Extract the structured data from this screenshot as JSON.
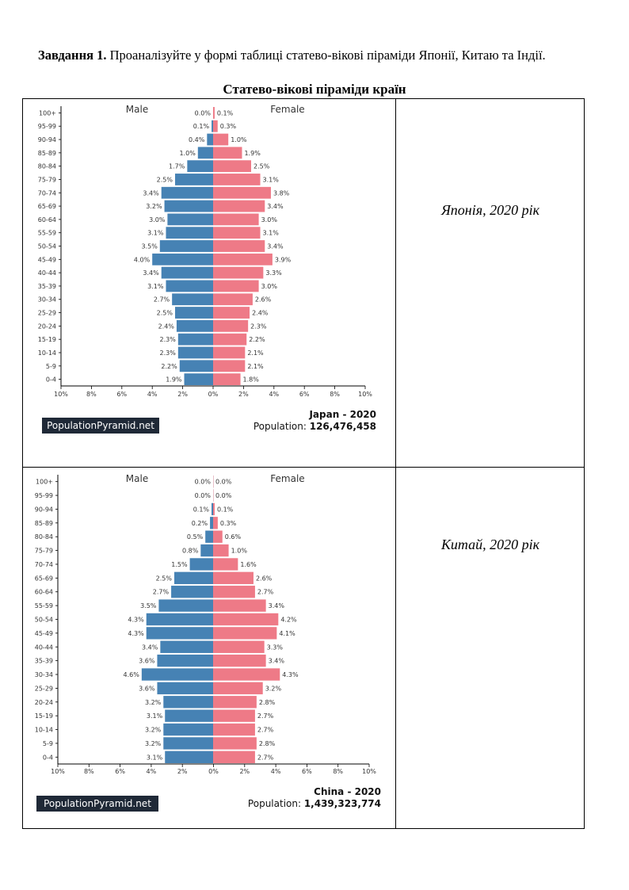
{
  "task": {
    "label": "Завдання 1.",
    "text": " Проаналізуйте у формі таблиці статево-вікові піраміди Японії, Китаю та Індії."
  },
  "table_title": "Статево-вікові піраміди країн",
  "rows": [
    {
      "caption": "Японія, 2020 рік"
    },
    {
      "caption": "Китай, 2020 рік"
    }
  ],
  "colors": {
    "male": "#4682b4",
    "female": "#ee7a87"
  },
  "chart_data": [
    {
      "type": "bar",
      "title": "Japan - 2020",
      "population_label": "Population:",
      "population": "126,476,458",
      "watermark": "PopulationPyramid.net",
      "legend": [
        "Male",
        "Female"
      ],
      "categories": [
        "100+",
        "95-99",
        "90-94",
        "85-89",
        "80-84",
        "75-79",
        "70-74",
        "65-69",
        "60-64",
        "55-59",
        "50-54",
        "45-49",
        "40-44",
        "35-39",
        "30-34",
        "25-29",
        "20-24",
        "15-19",
        "10-14",
        "5-9",
        "0-4"
      ],
      "series": [
        {
          "name": "Male",
          "values": [
            0.0,
            0.1,
            0.4,
            1.0,
            1.7,
            2.5,
            3.4,
            3.2,
            3.0,
            3.1,
            3.5,
            4.0,
            3.4,
            3.1,
            2.7,
            2.5,
            2.4,
            2.3,
            2.3,
            2.2,
            1.9
          ]
        },
        {
          "name": "Female",
          "values": [
            0.1,
            0.3,
            1.0,
            1.9,
            2.5,
            3.1,
            3.8,
            3.4,
            3.0,
            3.1,
            3.4,
            3.9,
            3.3,
            3.0,
            2.6,
            2.4,
            2.3,
            2.2,
            2.1,
            2.1,
            1.8
          ]
        }
      ],
      "xticks": [
        "10%",
        "8%",
        "6%",
        "4%",
        "2%",
        "0%",
        "2%",
        "4%",
        "6%",
        "8%",
        "10%"
      ],
      "xlim": [
        -10,
        10
      ]
    },
    {
      "type": "bar",
      "title": "China - 2020",
      "population_label": "Population:",
      "population": "1,439,323,774",
      "watermark": "PopulationPyramid.net",
      "legend": [
        "Male",
        "Female"
      ],
      "categories": [
        "100+",
        "95-99",
        "90-94",
        "85-89",
        "80-84",
        "75-79",
        "70-74",
        "65-69",
        "60-64",
        "55-59",
        "50-54",
        "45-49",
        "40-44",
        "35-39",
        "30-34",
        "25-29",
        "20-24",
        "15-19",
        "10-14",
        "5-9",
        "0-4"
      ],
      "series": [
        {
          "name": "Male",
          "values": [
            0.0,
            0.0,
            0.1,
            0.2,
            0.5,
            0.8,
            1.5,
            2.5,
            2.7,
            3.5,
            4.3,
            4.3,
            3.4,
            3.6,
            4.6,
            3.6,
            3.2,
            3.1,
            3.2,
            3.2,
            3.1
          ]
        },
        {
          "name": "Female",
          "values": [
            0.0,
            0.0,
            0.1,
            0.3,
            0.6,
            1.0,
            1.6,
            2.6,
            2.7,
            3.4,
            4.2,
            4.1,
            3.3,
            3.4,
            4.3,
            3.2,
            2.8,
            2.7,
            2.7,
            2.8,
            2.7
          ]
        }
      ],
      "xticks": [
        "10%",
        "8%",
        "6%",
        "4%",
        "2%",
        "0%",
        "2%",
        "4%",
        "6%",
        "8%",
        "10%"
      ],
      "xlim": [
        -10,
        10
      ]
    }
  ]
}
